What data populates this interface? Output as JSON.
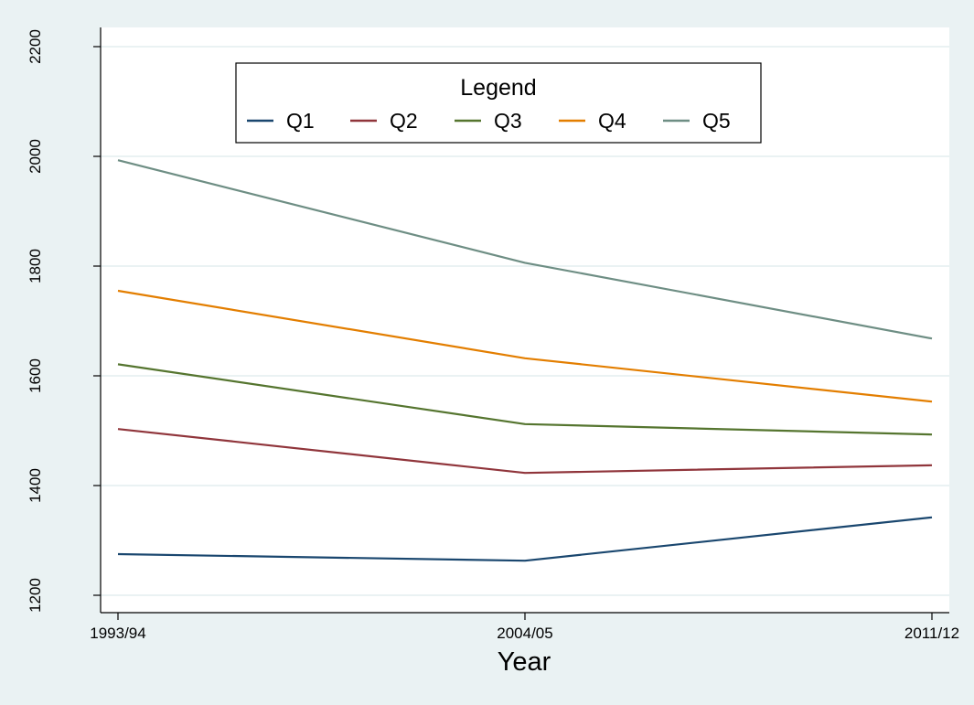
{
  "chart_data": {
    "type": "line",
    "title": "",
    "xlabel": "Year",
    "ylabel": "",
    "categories": [
      "1993/94",
      "2004/05",
      "2011/12"
    ],
    "ylim": [
      1200,
      2200
    ],
    "yticks": [
      1200,
      1400,
      1600,
      1800,
      2000,
      2200
    ],
    "grid": true,
    "legend": {
      "title": "Legend",
      "placement": "top-left"
    },
    "series": [
      {
        "name": "Q1",
        "color": "#1a476f",
        "values": [
          1275,
          1263,
          1342
        ]
      },
      {
        "name": "Q2",
        "color": "#90353b",
        "values": [
          1503,
          1423,
          1437
        ]
      },
      {
        "name": "Q3",
        "color": "#55752f",
        "values": [
          1621,
          1512,
          1493
        ]
      },
      {
        "name": "Q4",
        "color": "#e37e00",
        "values": [
          1755,
          1632,
          1553
        ]
      },
      {
        "name": "Q5",
        "color": "#6e8e84",
        "values": [
          1993,
          1806,
          1668
        ]
      }
    ],
    "colors": {
      "outer_background": "#eaf2f3",
      "plot_background": "#ffffff",
      "gridline": "#eaf2f3",
      "axis": "#000000"
    }
  }
}
